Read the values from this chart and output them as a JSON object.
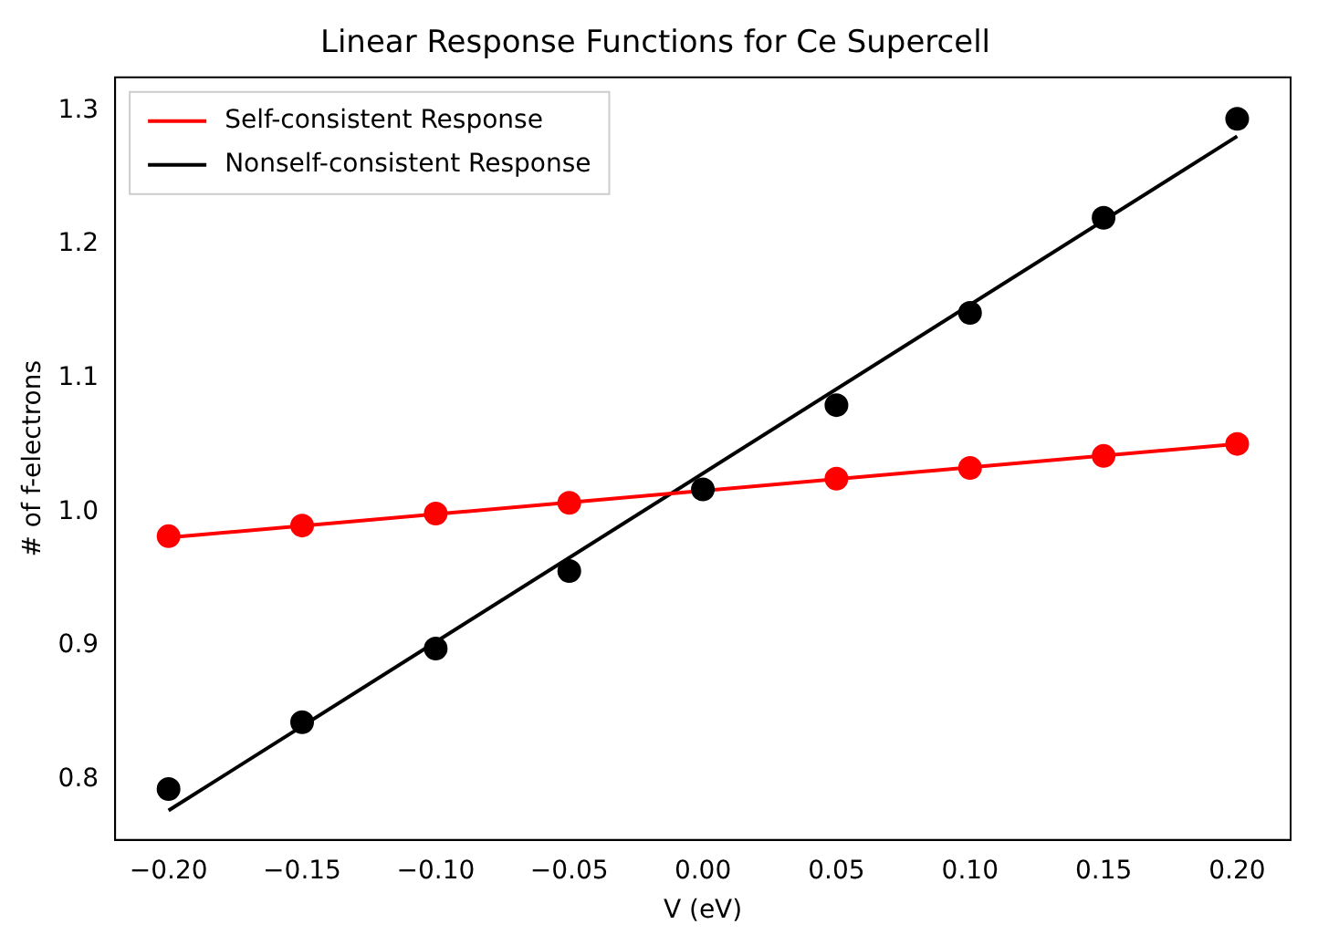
{
  "chart_data": {
    "type": "scatter",
    "title": "Linear Response Functions for Ce Supercell",
    "xlabel": "V (eV)",
    "ylabel": "# of f-electrons",
    "xlim": [
      -0.22,
      0.22
    ],
    "xticks": [
      {
        "value": -0.2,
        "label": "−0.20"
      },
      {
        "value": -0.15,
        "label": "−0.15"
      },
      {
        "value": -0.1,
        "label": "−0.10"
      },
      {
        "value": -0.05,
        "label": "−0.05"
      },
      {
        "value": 0,
        "label": "0.00"
      },
      {
        "value": 0.05,
        "label": "0.05"
      },
      {
        "value": 0.1,
        "label": "0.10"
      },
      {
        "value": 0.15,
        "label": "0.15"
      },
      {
        "value": 0.2,
        "label": "0.20"
      }
    ],
    "ylim": [
      0.755,
      1.325
    ],
    "yticks": [
      {
        "value": 0.8,
        "label": "0.8"
      },
      {
        "value": 0.9,
        "label": "0.9"
      },
      {
        "value": 1.0,
        "label": "1.0"
      },
      {
        "value": 1.1,
        "label": "1.1"
      },
      {
        "value": 1.2,
        "label": "1.2"
      },
      {
        "value": 1.3,
        "label": "1.3"
      }
    ],
    "grid": false,
    "legend": "top left",
    "series": [
      {
        "type": "line",
        "name": "Self-consistent Response",
        "color": "#ff0000",
        "x": [
          -0.2,
          0.2
        ],
        "values": [
          0.981,
          1.051
        ]
      },
      {
        "type": "line",
        "name": "Nonself-consistent Response",
        "color": "#000000",
        "x": [
          -0.2,
          0.2
        ],
        "values": [
          0.777,
          1.281
        ]
      },
      {
        "marker": "circle",
        "color": "#ff0000",
        "x": [
          -0.2,
          -0.15,
          -0.1,
          -0.05,
          0,
          0.05,
          0.1,
          0.15,
          0.2
        ],
        "values": [
          0.982,
          0.99,
          0.999,
          1.007,
          null,
          1.025,
          1.033,
          1.042,
          1.051
        ]
      },
      {
        "marker": "circle",
        "color": "#000000",
        "x": [
          -0.2,
          -0.15,
          -0.1,
          -0.05,
          0,
          0.05,
          0.1,
          0.15,
          0.2
        ],
        "values": [
          0.793,
          0.843,
          0.898,
          0.956,
          1.017,
          1.08,
          1.149,
          1.22,
          1.294
        ]
      }
    ]
  }
}
